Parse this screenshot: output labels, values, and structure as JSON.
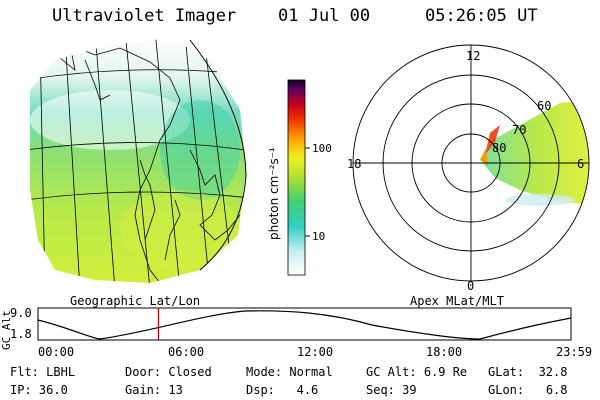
{
  "header": {
    "instrument": "Ultraviolet Imager",
    "date": "01 Jul 00",
    "time": "05:26:05 UT"
  },
  "colorbar": {
    "label": "photon cm⁻²s⁻¹",
    "ticks": [
      "100",
      "10"
    ]
  },
  "left_panel": {
    "caption": "Geographic Lat/Lon"
  },
  "right_panel": {
    "caption": "Apex MLat/MLT",
    "mlt_labels": {
      "top": "12",
      "left": "18",
      "right": "6",
      "bottom": "0"
    },
    "lat_labels": [
      "60",
      "70",
      "80"
    ]
  },
  "timeline": {
    "ylabel": "GC Alt",
    "yticks": [
      "9.0",
      "1.8"
    ],
    "xticks": [
      "00:00",
      "06:00",
      "12:00",
      "18:00",
      "23:59"
    ],
    "cursor_fraction": 0.226
  },
  "info": {
    "flt_label": "Flt:",
    "flt_value": "LBHL",
    "ip_label": "IP:",
    "ip_value": "36.0",
    "door_label": "Door:",
    "door_value": "Closed",
    "gain_label": "Gain:",
    "gain_value": "13",
    "mode_label": "Mode:",
    "mode_value": "Normal",
    "dsp_label": "Dsp:",
    "dsp_value": "4.6",
    "gcalt_label": "GC Alt:",
    "gcalt_value": "6.9 Re",
    "seq_label": "Seq:",
    "seq_value": "39",
    "glat_label": "GLat:",
    "glat_value": "32.8",
    "glon_label": "GLon:",
    "glon_value": "6.8"
  }
}
